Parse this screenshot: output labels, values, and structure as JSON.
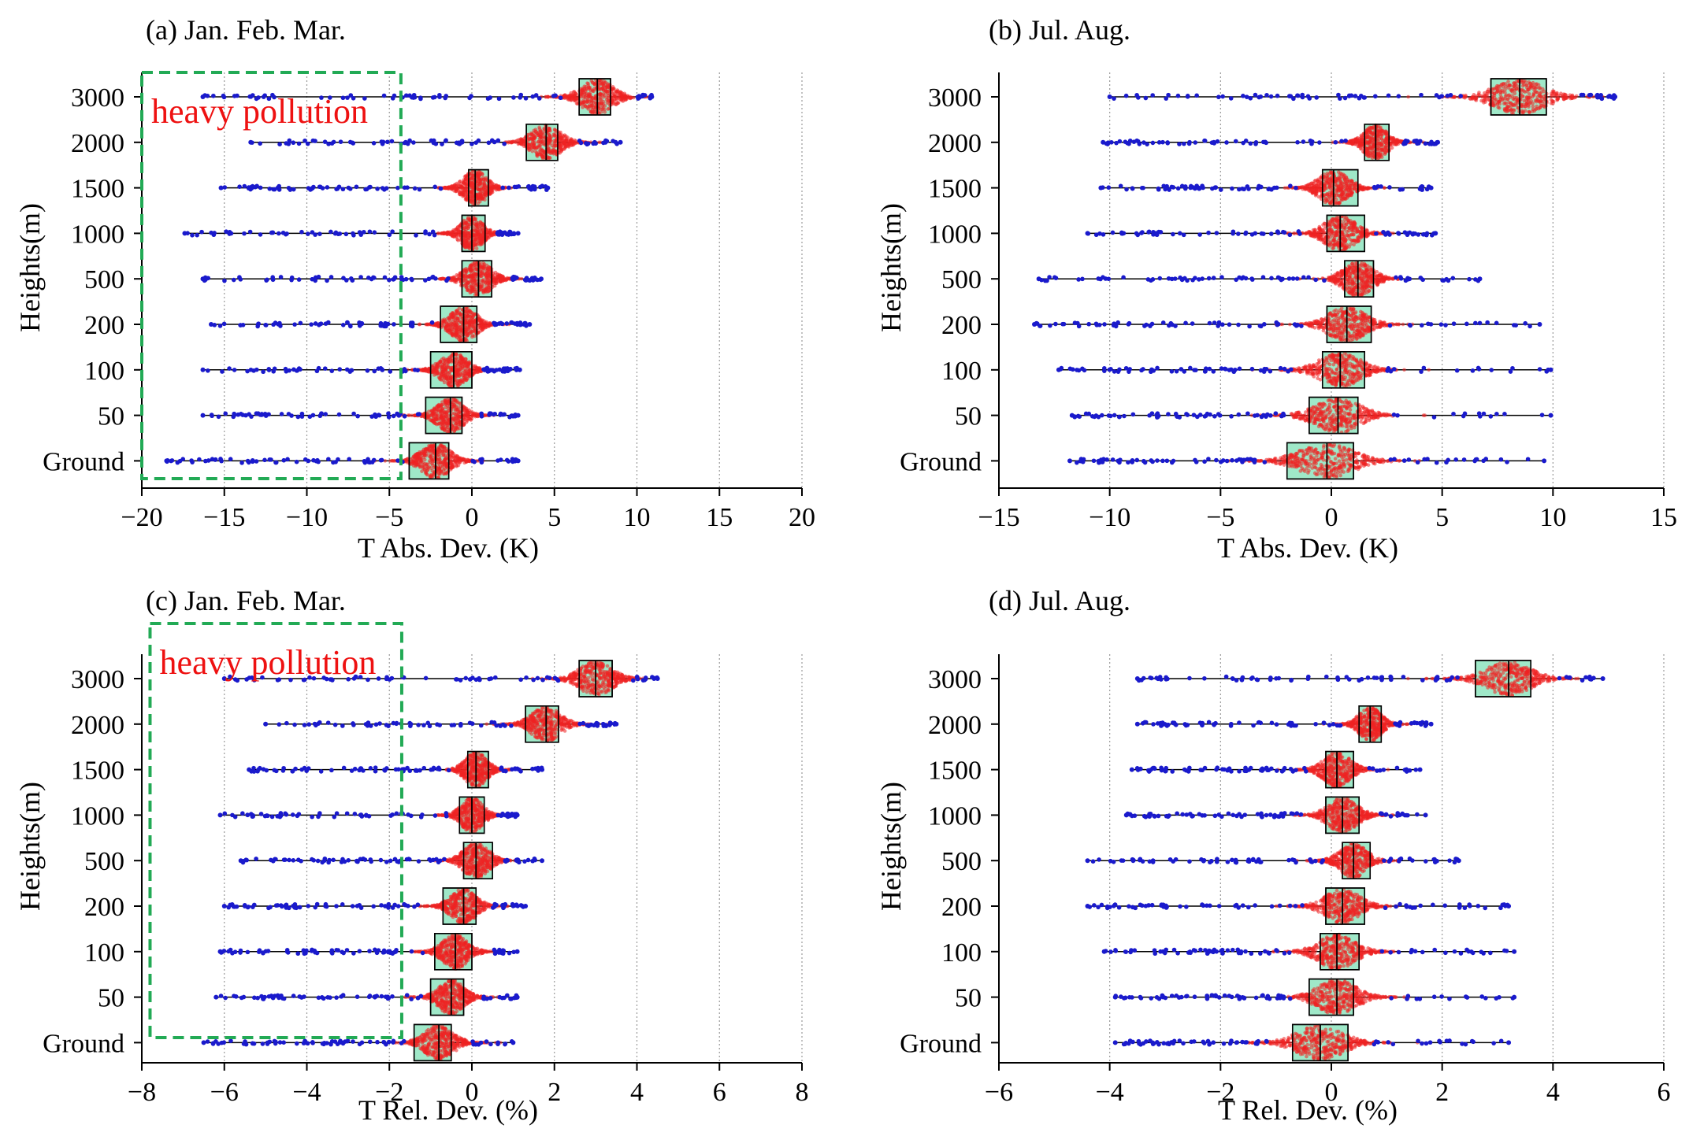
{
  "chart_data": [
    {
      "type": "box_swarm",
      "title": "(a) Jan. Feb. Mar.",
      "xlabel": "T Abs. Dev. (K)",
      "ylabel": "Heights(m)",
      "xlim": [
        -20,
        20
      ],
      "xticks": [
        -20,
        -15,
        -10,
        -5,
        0,
        5,
        10,
        15,
        20
      ],
      "xtick_labels": [
        "−20",
        "−15",
        "−10",
        "−5",
        "0",
        "5",
        "10",
        "15",
        "20"
      ],
      "categories": [
        "3000",
        "2000",
        "1500",
        "1000",
        "500",
        "200",
        "100",
        "50",
        "Ground"
      ],
      "series": [
        {
          "category": "3000",
          "min": -16.3,
          "q1": 6.5,
          "median": 7.6,
          "q3": 8.4,
          "max": 10.9,
          "spread": 2.2
        },
        {
          "category": "2000",
          "min": -13.4,
          "q1": 3.3,
          "median": 4.5,
          "q3": 5.2,
          "max": 9.0,
          "spread": 2.0
        },
        {
          "category": "1500",
          "min": -15.2,
          "q1": -0.2,
          "median": 0.2,
          "q3": 1.0,
          "max": 4.6,
          "spread": 1.6
        },
        {
          "category": "1000",
          "min": -17.4,
          "q1": -0.6,
          "median": 0.0,
          "q3": 0.8,
          "max": 2.8,
          "spread": 1.5
        },
        {
          "category": "500",
          "min": -16.3,
          "q1": -0.6,
          "median": 0.4,
          "q3": 1.2,
          "max": 4.2,
          "spread": 1.8
        },
        {
          "category": "200",
          "min": -15.8,
          "q1": -1.9,
          "median": -0.5,
          "q3": 0.3,
          "max": 3.5,
          "spread": 1.8
        },
        {
          "category": "100",
          "min": -16.3,
          "q1": -2.5,
          "median": -1.1,
          "q3": 0.0,
          "max": 2.9,
          "spread": 1.8
        },
        {
          "category": "50",
          "min": -16.3,
          "q1": -2.8,
          "median": -1.3,
          "q3": -0.6,
          "max": 2.8,
          "spread": 1.8
        },
        {
          "category": "Ground",
          "min": -18.5,
          "q1": -3.8,
          "median": -2.2,
          "q3": -1.4,
          "max": 2.8,
          "spread": 2.0
        }
      ],
      "annotation": {
        "text": "heavy pollution",
        "x_range": [
          -20,
          -4.3
        ]
      }
    },
    {
      "type": "box_swarm",
      "title": "(b) Jul. Aug.",
      "xlabel": "T Abs. Dev. (K)",
      "ylabel": "Heights(m)",
      "xlim": [
        -15,
        15
      ],
      "xticks": [
        -15,
        -10,
        -5,
        0,
        5,
        10,
        15
      ],
      "xtick_labels": [
        "−15",
        "−10",
        "−5",
        "0",
        "5",
        "10",
        "15"
      ],
      "categories": [
        "3000",
        "2000",
        "1500",
        "1000",
        "500",
        "200",
        "100",
        "50",
        "Ground"
      ],
      "series": [
        {
          "category": "3000",
          "min": -10.0,
          "q1": 7.2,
          "median": 8.5,
          "q3": 9.7,
          "max": 12.8,
          "spread": 2.6
        },
        {
          "category": "2000",
          "min": -10.3,
          "q1": 1.5,
          "median": 2.0,
          "q3": 2.6,
          "max": 4.8,
          "spread": 1.2
        },
        {
          "category": "1500",
          "min": -10.4,
          "q1": -0.4,
          "median": 0.1,
          "q3": 1.2,
          "max": 4.5,
          "spread": 1.5
        },
        {
          "category": "1000",
          "min": -11.0,
          "q1": -0.2,
          "median": 0.4,
          "q3": 1.5,
          "max": 4.7,
          "spread": 1.6
        },
        {
          "category": "500",
          "min": -13.2,
          "q1": 0.6,
          "median": 1.2,
          "q3": 1.9,
          "max": 6.7,
          "spread": 1.5
        },
        {
          "category": "200",
          "min": -13.4,
          "q1": -0.2,
          "median": 0.7,
          "q3": 1.8,
          "max": 9.4,
          "spread": 1.9
        },
        {
          "category": "100",
          "min": -12.3,
          "q1": -0.4,
          "median": 0.4,
          "q3": 1.5,
          "max": 9.9,
          "spread": 2.1
        },
        {
          "category": "50",
          "min": -11.7,
          "q1": -1.0,
          "median": 0.3,
          "q3": 1.2,
          "max": 9.9,
          "spread": 2.3
        },
        {
          "category": "Ground",
          "min": -11.8,
          "q1": -2.0,
          "median": -0.2,
          "q3": 1.0,
          "max": 9.6,
          "spread": 2.8
        }
      ]
    },
    {
      "type": "box_swarm",
      "title": "(c) Jan. Feb. Mar.",
      "xlabel": "T Rel. Dev. (%)",
      "ylabel": "Heights(m)",
      "xlim": [
        -8,
        8
      ],
      "xticks": [
        -8,
        -6,
        -4,
        -2,
        0,
        2,
        4,
        6,
        8
      ],
      "xtick_labels": [
        "−8",
        "−6",
        "−4",
        "−2",
        "0",
        "2",
        "4",
        "6",
        "8"
      ],
      "categories": [
        "3000",
        "2000",
        "1500",
        "1000",
        "500",
        "200",
        "100",
        "50",
        "Ground"
      ],
      "series": [
        {
          "category": "3000",
          "min": -6.0,
          "q1": 2.6,
          "median": 3.0,
          "q3": 3.4,
          "max": 4.5,
          "spread": 0.9
        },
        {
          "category": "2000",
          "min": -5.0,
          "q1": 1.3,
          "median": 1.8,
          "q3": 2.1,
          "max": 3.5,
          "spread": 0.8
        },
        {
          "category": "1500",
          "min": -5.4,
          "q1": -0.1,
          "median": 0.1,
          "q3": 0.4,
          "max": 1.7,
          "spread": 0.6
        },
        {
          "category": "1000",
          "min": -6.1,
          "q1": -0.3,
          "median": 0.0,
          "q3": 0.3,
          "max": 1.1,
          "spread": 0.6
        },
        {
          "category": "500",
          "min": -5.6,
          "q1": -0.2,
          "median": 0.1,
          "q3": 0.5,
          "max": 1.7,
          "spread": 0.7
        },
        {
          "category": "200",
          "min": -6.0,
          "q1": -0.7,
          "median": -0.2,
          "q3": 0.1,
          "max": 1.3,
          "spread": 0.7
        },
        {
          "category": "100",
          "min": -6.1,
          "q1": -0.9,
          "median": -0.4,
          "q3": 0.0,
          "max": 1.1,
          "spread": 0.7
        },
        {
          "category": "50",
          "min": -6.2,
          "q1": -1.0,
          "median": -0.5,
          "q3": -0.2,
          "max": 1.1,
          "spread": 0.7
        },
        {
          "category": "Ground",
          "min": -6.5,
          "q1": -1.4,
          "median": -0.8,
          "q3": -0.5,
          "max": 1.0,
          "spread": 0.8
        }
      ],
      "annotation": {
        "text": "heavy pollution",
        "x_range": [
          -7.8,
          -1.7
        ]
      }
    },
    {
      "type": "box_swarm",
      "title": "(d) Jul. Aug.",
      "xlabel": "T Rel. Dev. (%)",
      "ylabel": "Heights(m)",
      "xlim": [
        -6,
        6
      ],
      "xticks": [
        -6,
        -4,
        -2,
        0,
        2,
        4,
        6
      ],
      "xtick_labels": [
        "−6",
        "−4",
        "−2",
        "0",
        "2",
        "4",
        "6"
      ],
      "categories": [
        "3000",
        "2000",
        "1500",
        "1000",
        "500",
        "200",
        "100",
        "50",
        "Ground"
      ],
      "series": [
        {
          "category": "3000",
          "min": -3.5,
          "q1": 2.6,
          "median": 3.2,
          "q3": 3.6,
          "max": 4.9,
          "spread": 0.9
        },
        {
          "category": "2000",
          "min": -3.5,
          "q1": 0.5,
          "median": 0.7,
          "q3": 0.9,
          "max": 1.8,
          "spread": 0.45
        },
        {
          "category": "1500",
          "min": -3.6,
          "q1": -0.1,
          "median": 0.1,
          "q3": 0.4,
          "max": 1.6,
          "spread": 0.55
        },
        {
          "category": "1000",
          "min": -3.7,
          "q1": -0.1,
          "median": 0.2,
          "q3": 0.5,
          "max": 1.7,
          "spread": 0.6
        },
        {
          "category": "500",
          "min": -4.4,
          "q1": 0.2,
          "median": 0.4,
          "q3": 0.7,
          "max": 2.3,
          "spread": 0.55
        },
        {
          "category": "200",
          "min": -4.4,
          "q1": -0.1,
          "median": 0.2,
          "q3": 0.6,
          "max": 3.2,
          "spread": 0.7
        },
        {
          "category": "100",
          "min": -4.1,
          "q1": -0.2,
          "median": 0.1,
          "q3": 0.5,
          "max": 3.3,
          "spread": 0.75
        },
        {
          "category": "50",
          "min": -3.9,
          "q1": -0.4,
          "median": 0.1,
          "q3": 0.4,
          "max": 3.3,
          "spread": 0.8
        },
        {
          "category": "Ground",
          "min": -3.9,
          "q1": -0.7,
          "median": -0.2,
          "q3": 0.3,
          "max": 3.2,
          "spread": 0.95
        }
      ]
    }
  ],
  "colors": {
    "points_inner": "#ee2222",
    "points_outer": "#1a1acc",
    "box_fill": "#9fe8c8",
    "box_edge": "#000000",
    "annotation_box": "#22aa55",
    "annotation_text": "#ee1111",
    "gridline": "#999999"
  }
}
